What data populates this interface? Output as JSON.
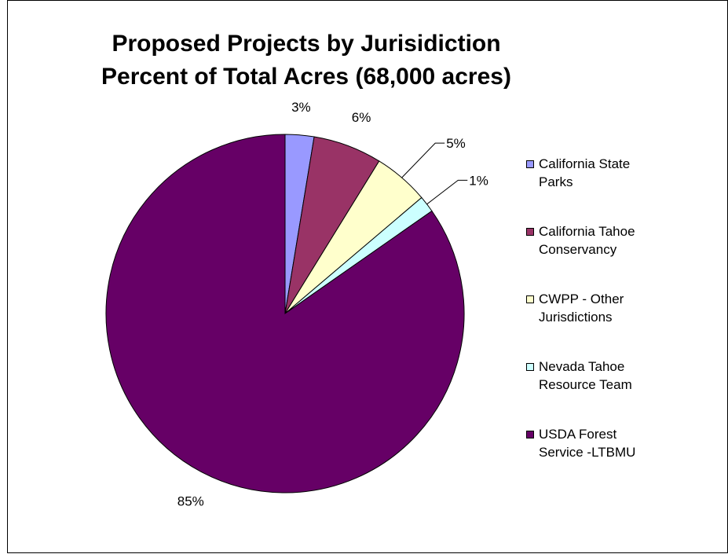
{
  "chart_data": {
    "type": "pie",
    "title_lines": [
      "Proposed Projects by Jurisidiction",
      "Percent of Total Acres (68,000 acres)"
    ],
    "categories": [
      "California State Parks",
      "California Tahoe Conservancy",
      "CWPP - Other Jurisdictions",
      "Nevada Tahoe Resource Team",
      "USDA Forest Service -LTBMU"
    ],
    "legend_lines": [
      [
        "California State",
        "Parks"
      ],
      [
        "California Tahoe",
        "Conservancy"
      ],
      [
        "CWPP - Other",
        "Jurisdictions"
      ],
      [
        "Nevada Tahoe",
        "Resource Team"
      ],
      [
        "USDA Forest",
        "Service -LTBMU"
      ]
    ],
    "values": [
      2.6,
      6.2,
      5.0,
      1.5,
      84.7
    ],
    "data_labels": [
      "3%",
      "6%",
      "5%",
      "1%",
      "85%"
    ],
    "colors": [
      "#9999FF",
      "#993366",
      "#FFFFCC",
      "#CCFFFF",
      "#660066"
    ],
    "legend_placement": "right"
  }
}
